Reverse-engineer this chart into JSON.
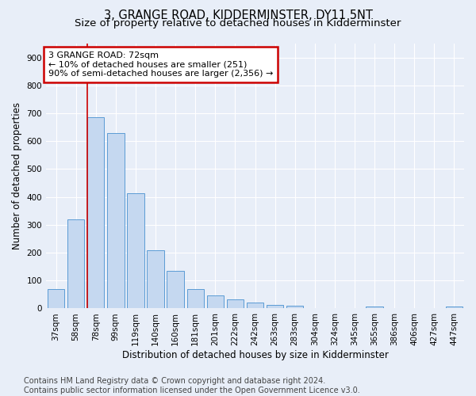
{
  "title": "3, GRANGE ROAD, KIDDERMINSTER, DY11 5NT",
  "subtitle": "Size of property relative to detached houses in Kidderminster",
  "xlabel": "Distribution of detached houses by size in Kidderminster",
  "ylabel": "Number of detached properties",
  "categories": [
    "37sqm",
    "58sqm",
    "78sqm",
    "99sqm",
    "119sqm",
    "140sqm",
    "160sqm",
    "181sqm",
    "201sqm",
    "222sqm",
    "242sqm",
    "263sqm",
    "283sqm",
    "304sqm",
    "324sqm",
    "345sqm",
    "365sqm",
    "386sqm",
    "406sqm",
    "427sqm",
    "447sqm"
  ],
  "values": [
    70,
    320,
    685,
    628,
    412,
    208,
    136,
    70,
    48,
    33,
    22,
    12,
    9,
    0,
    0,
    0,
    8,
    0,
    0,
    0,
    8
  ],
  "bar_color": "#c5d8f0",
  "bar_edge_color": "#5b9bd5",
  "vline_color": "#cc0000",
  "vline_x_index": 2,
  "annotation_text": "3 GRANGE ROAD: 72sqm\n← 10% of detached houses are smaller (251)\n90% of semi-detached houses are larger (2,356) →",
  "annotation_box_color": "#ffffff",
  "annotation_box_edge": "#cc0000",
  "ylim": [
    0,
    950
  ],
  "yticks": [
    0,
    100,
    200,
    300,
    400,
    500,
    600,
    700,
    800,
    900
  ],
  "footer": "Contains HM Land Registry data © Crown copyright and database right 2024.\nContains public sector information licensed under the Open Government Licence v3.0.",
  "background_color": "#e8eef8",
  "plot_bg_color": "#e8eef8",
  "title_fontsize": 10.5,
  "subtitle_fontsize": 9.5,
  "axis_label_fontsize": 8.5,
  "tick_fontsize": 7.5,
  "footer_fontsize": 7,
  "annotation_fontsize": 8
}
